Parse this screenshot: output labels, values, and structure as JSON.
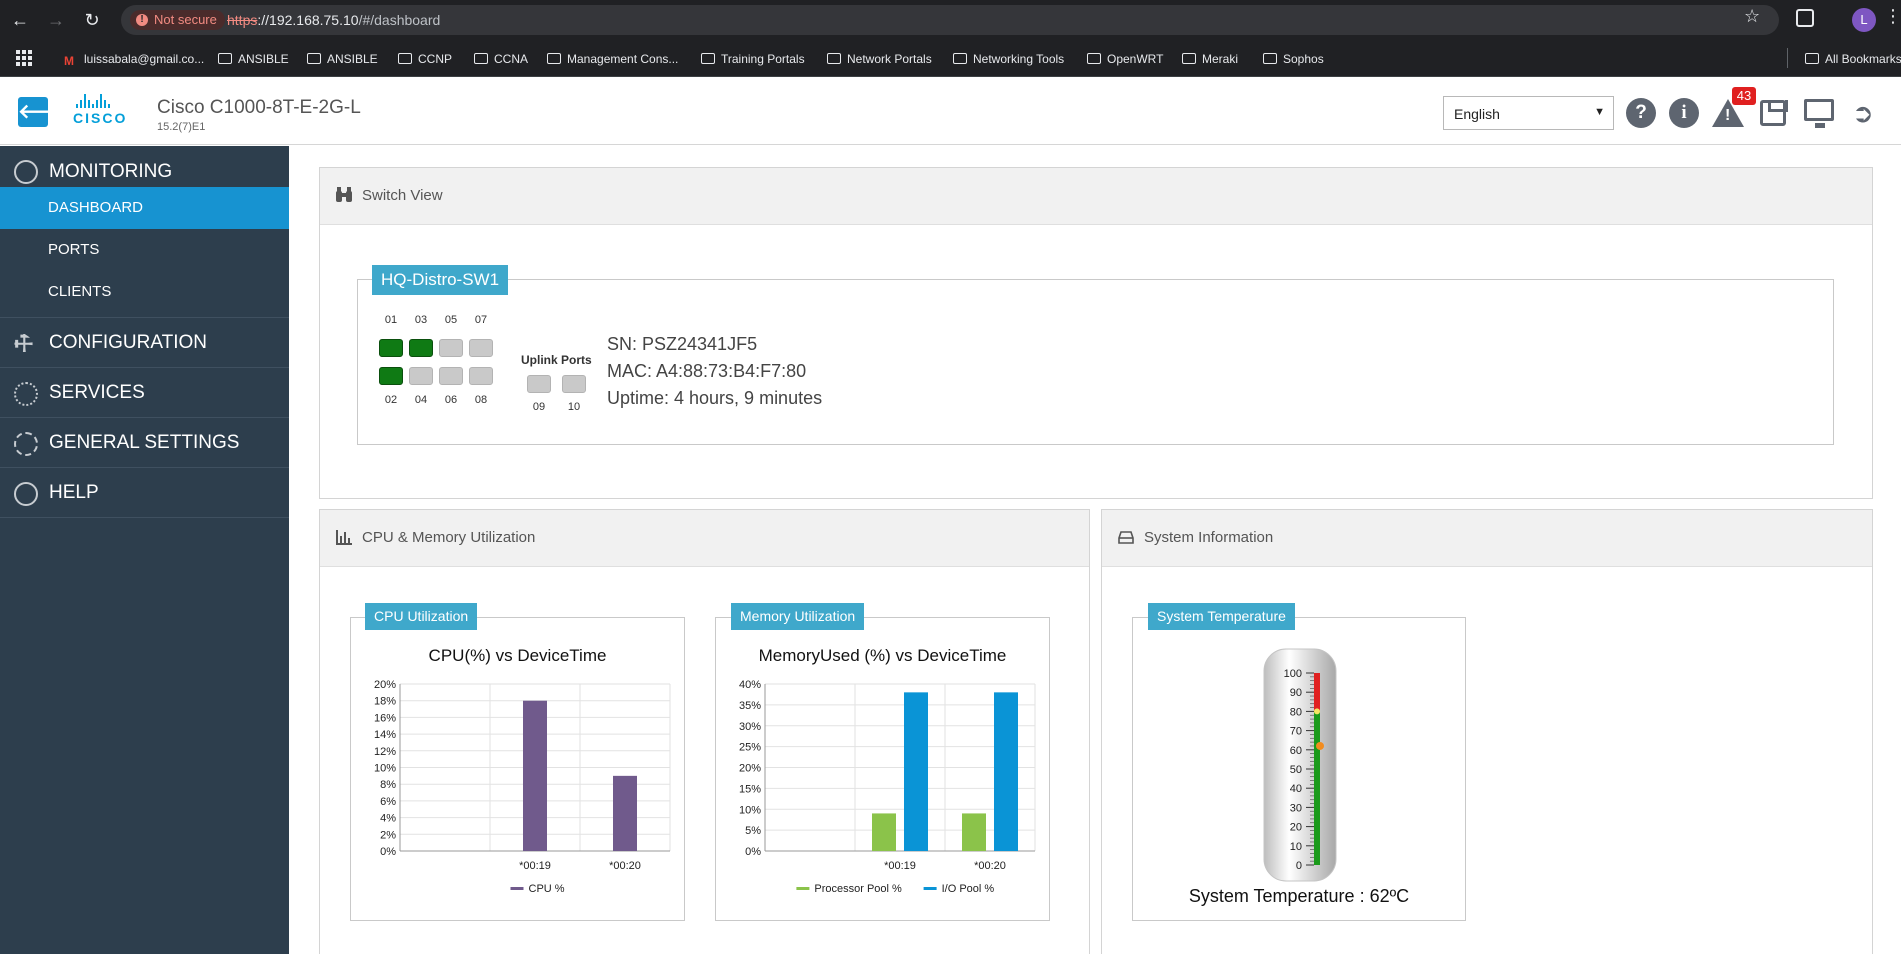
{
  "browser": {
    "security_label": "Not secure",
    "url_scheme": "https",
    "url_host": "://192.168.75.10",
    "url_path": "/#/dashboard",
    "profile_initial": "L",
    "bookmarks": [
      {
        "label": "luissabala@gmail.co...",
        "icon": "gmail-icon"
      },
      {
        "label": "ANSIBLE",
        "icon": "folder-icon"
      },
      {
        "label": "ANSIBLE",
        "icon": "folder-icon"
      },
      {
        "label": "CCNP",
        "icon": "folder-icon"
      },
      {
        "label": "CCNA",
        "icon": "folder-icon"
      },
      {
        "label": "Management Cons...",
        "icon": "folder-icon"
      },
      {
        "label": "Training Portals",
        "icon": "folder-icon"
      },
      {
        "label": "Network Portals",
        "icon": "folder-icon"
      },
      {
        "label": "Networking Tools",
        "icon": "folder-icon"
      },
      {
        "label": "OpenWRT",
        "icon": "folder-icon"
      },
      {
        "label": "Meraki",
        "icon": "folder-icon"
      },
      {
        "label": "Sophos",
        "icon": "folder-icon"
      }
    ],
    "all_bookmarks_label": "All Bookmarks"
  },
  "header": {
    "logo_text": "CISCO",
    "model": "Cisco C1000-8T-E-2G-L",
    "version": "15.2(7)E1",
    "language": "English",
    "alert_count": "43",
    "brand_color": "#1793d1"
  },
  "sidebar": {
    "monitoring": {
      "label": "MONITORING",
      "items": [
        "DASHBOARD",
        "PORTS",
        "CLIENTS"
      ],
      "active": "DASHBOARD"
    },
    "sections": [
      "CONFIGURATION",
      "SERVICES",
      "GENERAL SETTINGS",
      "HELP"
    ]
  },
  "switch_view": {
    "panel_title": "Switch View",
    "hostname": "HQ-Distro-SW1",
    "top_port_numbers": [
      "01",
      "03",
      "05",
      "07"
    ],
    "bottom_port_numbers": [
      "02",
      "04",
      "06",
      "08"
    ],
    "ports_up": [
      "01",
      "02",
      "03"
    ],
    "uplink_label": "Uplink Ports",
    "uplink_numbers": [
      "09",
      "10"
    ],
    "serial": "SN: PSZ24341JF5",
    "mac": "MAC: A4:88:73:B4:F7:80",
    "uptime": "Uptime: 4 hours, 9 minutes",
    "port_up_color": "#0f7a14",
    "port_down_color": "#c9c9c9"
  },
  "cpu_mem": {
    "panel_title": "CPU & Memory Utilization",
    "cpu_legend": "CPU Utilization",
    "mem_legend": "Memory Utilization"
  },
  "system_info": {
    "panel_title": "System Information",
    "temp_legend": "System Temperature",
    "temp_caption": "System Temperature : 62ºC"
  },
  "chart_data": [
    {
      "type": "bar",
      "title": "CPU(%) vs DeviceTime",
      "categories": [
        "",
        "*00:19",
        "*00:20"
      ],
      "series": [
        {
          "name": "CPU %",
          "values": [
            null,
            18,
            9
          ],
          "color": "#705a8c"
        }
      ],
      "ylim": [
        0,
        20
      ],
      "yticks": [
        "0%",
        "2%",
        "4%",
        "6%",
        "8%",
        "10%",
        "12%",
        "14%",
        "16%",
        "18%",
        "20%"
      ],
      "grid": true,
      "legend": "bottom"
    },
    {
      "type": "bar",
      "title": "MemoryUsed (%) vs DeviceTime",
      "categories": [
        "",
        "*00:19",
        "*00:20"
      ],
      "series": [
        {
          "name": "Processor Pool %",
          "values": [
            null,
            9,
            9
          ],
          "color": "#8bc34a"
        },
        {
          "name": "I/O Pool %",
          "values": [
            null,
            38,
            38
          ],
          "color": "#0a94d6"
        }
      ],
      "ylim": [
        0,
        40
      ],
      "yticks": [
        "0%",
        "5%",
        "10%",
        "15%",
        "20%",
        "25%",
        "30%",
        "35%",
        "40%"
      ],
      "grid": true,
      "legend": "bottom"
    },
    {
      "type": "gauge",
      "title": "System Temperature",
      "value": 62,
      "unit": "ºC",
      "ylim": [
        0,
        100
      ],
      "yticks": [
        "0",
        "10",
        "20",
        "30",
        "40",
        "50",
        "60",
        "70",
        "80",
        "90",
        "100"
      ],
      "zones": [
        {
          "from": 0,
          "to": 80,
          "color": "#1a9a1a"
        },
        {
          "from": 80,
          "to": 100,
          "color": "#e02020"
        }
      ]
    }
  ]
}
